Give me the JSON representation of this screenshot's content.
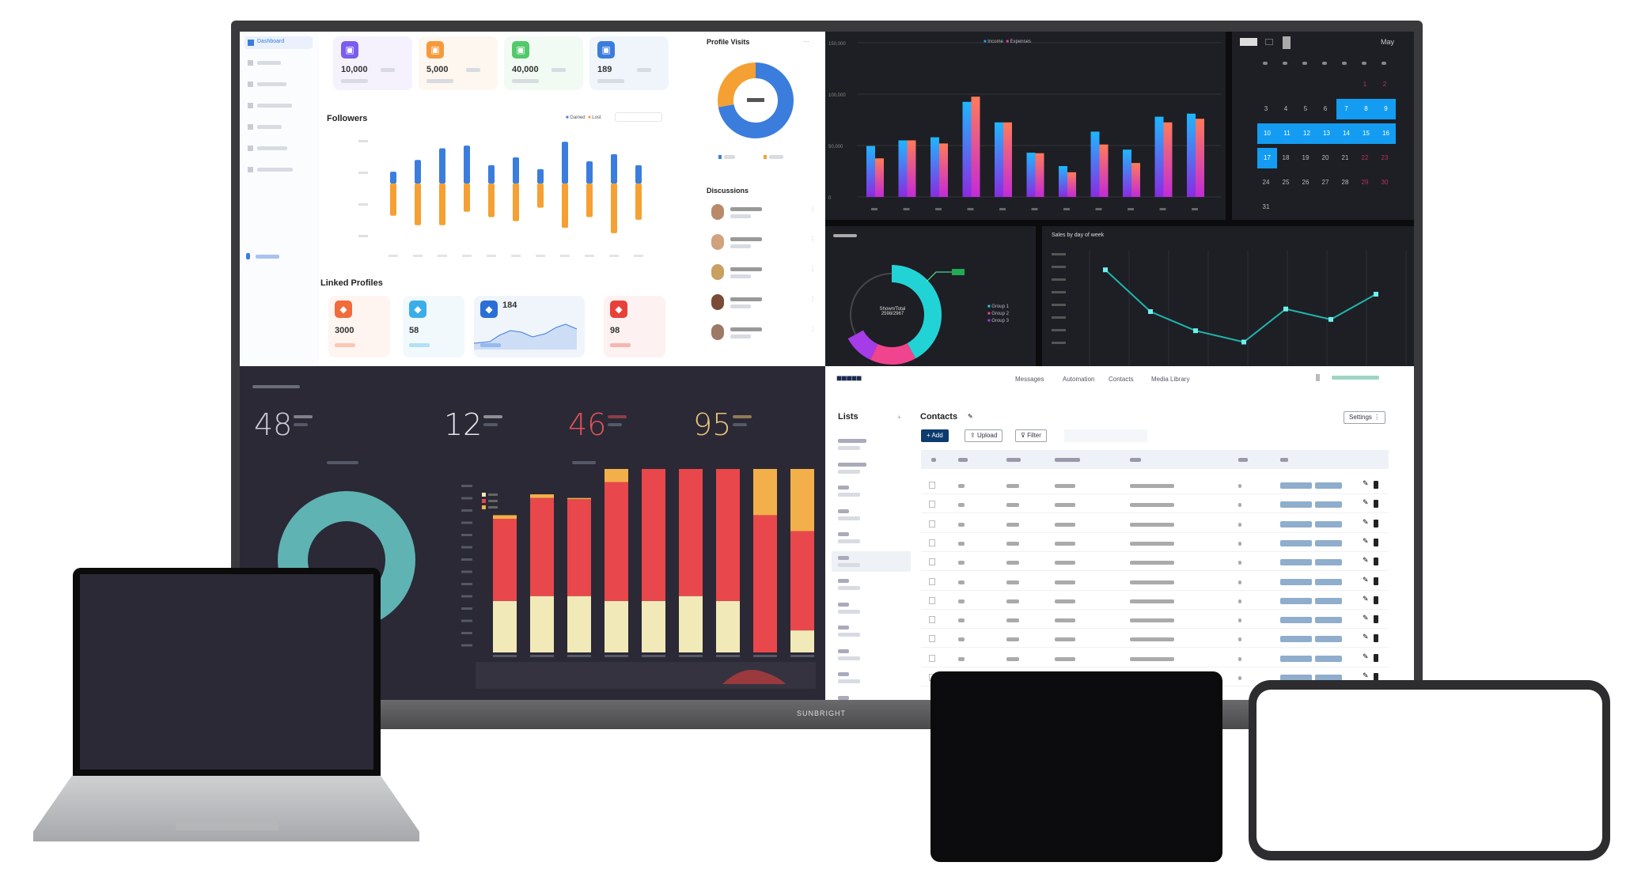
{
  "monitor": {
    "brand": "SUNBRIGHT",
    "light_dashboard": {
      "sidebar": {
        "active_item": "Dashboard"
      },
      "kpis": [
        {
          "value": "10,000",
          "color": "#7b5cf0",
          "icon": "users-icon"
        },
        {
          "value": "5,000",
          "color": "#f59a3c",
          "icon": "heart-icon"
        },
        {
          "value": "40,000",
          "color": "#52c96a",
          "icon": "eye-icon"
        },
        {
          "value": "189",
          "color": "#3b7ddd",
          "icon": "share-icon"
        }
      ],
      "followers": {
        "title": "Followers",
        "legend": [
          "Gained",
          "Lost"
        ]
      },
      "profile_visits": {
        "title": "Profile Visits"
      },
      "discussions": {
        "title": "Discussions"
      },
      "linked_profiles": {
        "title": "Linked Profiles",
        "cards": [
          {
            "value": "3000",
            "color": "#f26b3a",
            "icon": "instagram-icon"
          },
          {
            "value": "58",
            "color": "#3aaee8",
            "icon": "twitter-icon"
          },
          {
            "value": "184",
            "color": "#2a6fd6",
            "icon": "linkedin-icon"
          },
          {
            "value": "98",
            "color": "#e8413a",
            "icon": "pinterest-icon"
          }
        ]
      }
    },
    "dark_dashboard": {
      "legend": [
        "Income",
        "Expenses"
      ],
      "calendar": {
        "month": "May",
        "weeks": [
          [
            "",
            "",
            "",
            "",
            "",
            "1",
            "2"
          ],
          [
            "3",
            "4",
            "5",
            "6",
            "7",
            "8",
            "9"
          ],
          [
            "10",
            "11",
            "12",
            "13",
            "14",
            "15",
            "16"
          ],
          [
            "17",
            "18",
            "19",
            "20",
            "21",
            "22",
            "23"
          ],
          [
            "24",
            "25",
            "26",
            "27",
            "28",
            "29",
            "30"
          ],
          [
            "31",
            "",
            "",
            "",
            "",
            "",
            ""
          ]
        ],
        "selected_from": 7,
        "selected_to": 17,
        "highlight_color": "#139cf2"
      },
      "groups_panel": {
        "center_label": "Shown/Total",
        "center_value": "2598/2967",
        "legend": [
          "Group 1",
          "Group 2",
          "Group 3"
        ]
      },
      "sales_panel": {
        "title": "Sales by day of week"
      }
    },
    "stats_dashboard": {
      "kpis": [
        {
          "value": "48",
          "color": "#c9ccd6"
        },
        {
          "value": "12",
          "color": "#e6e6ea"
        },
        {
          "value": "46",
          "color": "#e0525a"
        },
        {
          "value": "95",
          "color": "#e9c27a"
        }
      ]
    },
    "contacts_app": {
      "nav": [
        "Messages",
        "Automation",
        "Contacts",
        "Media Library"
      ],
      "lists_title": "Lists",
      "contacts_title": "Contacts",
      "buttons": {
        "add": "Add",
        "upload": "Upload",
        "filter": "Filter",
        "settings": "Settings"
      },
      "row_count": 11,
      "accent": "#0d3b6e"
    }
  },
  "chart_data": [
    {
      "id": "followers",
      "type": "bar",
      "title": "Followers",
      "stacked": "diverging",
      "series": [
        {
          "name": "Gained",
          "color": "#3b7ddd",
          "values": [
            45,
            90,
            135,
            145,
            70,
            100,
            55,
            160,
            85,
            112,
            70
          ]
        },
        {
          "name": "Lost",
          "color": "#f5a033",
          "values": [
            120,
            155,
            155,
            105,
            125,
            140,
            90,
            165,
            125,
            185,
            135
          ]
        }
      ]
    },
    {
      "id": "income_expenses",
      "type": "bar",
      "ylim": [
        0,
        150000
      ],
      "yticks": [
        "0",
        "50,000",
        "100,000",
        "150,000"
      ],
      "grid": true,
      "legend": "top-center",
      "series": [
        {
          "name": "Income",
          "values": [
            49500,
            55000,
            58000,
            92500,
            72500,
            43000,
            30000,
            63500,
            46000,
            78000,
            81000
          ]
        },
        {
          "name": "Expenses",
          "values": [
            37500,
            55000,
            52000,
            97500,
            72500,
            42500,
            24000,
            51000,
            33000,
            72500,
            76000
          ]
        }
      ]
    },
    {
      "id": "profile_visits",
      "type": "pie",
      "donut": true,
      "slices": [
        {
          "value": 72,
          "color": "#3b7ddd"
        },
        {
          "value": 28,
          "color": "#f5a033"
        }
      ]
    },
    {
      "id": "groups",
      "type": "pie",
      "donut": true,
      "slices": [
        {
          "name": "Group 1",
          "value": 42,
          "color": "#22d3d6"
        },
        {
          "name": "Group 2",
          "value": 15,
          "color": "#f0448f"
        },
        {
          "name": "Group 3",
          "value": 10,
          "color": "#a63be8"
        },
        {
          "value": 33,
          "color": "#44464d"
        }
      ]
    },
    {
      "id": "sales",
      "type": "line",
      "title": "Sales by day of week",
      "color": "#1fb5b0",
      "values": [
        88,
        40,
        18,
        5,
        43,
        31,
        60
      ]
    },
    {
      "id": "stacked_stats",
      "type": "bar",
      "stacked": true,
      "series": [
        {
          "color": "#f1e9b8",
          "values": [
            42,
            46,
            46,
            42,
            42,
            46,
            42,
            0,
            18
          ]
        },
        {
          "color": "#e8474c",
          "values": [
            67,
            80,
            79,
            97,
            111,
            123,
            120,
            112,
            81
          ]
        },
        {
          "color": "#f3b04a",
          "values": [
            3,
            3,
            1,
            18,
            44,
            43,
            42,
            43,
            53
          ]
        }
      ]
    },
    {
      "id": "teal_ring",
      "type": "pie",
      "donut": true,
      "slices": [
        {
          "value": 100,
          "color": "#5fb3b3"
        }
      ]
    }
  ]
}
